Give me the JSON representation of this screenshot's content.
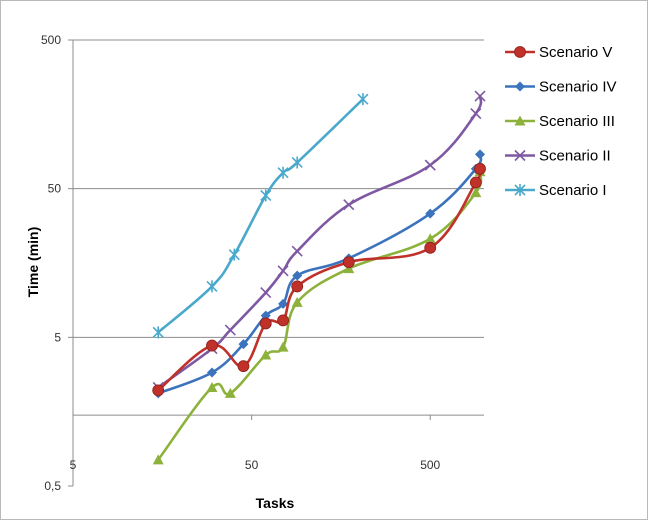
{
  "chart_data": {
    "type": "line",
    "title": "",
    "xlabel": "Tasks",
    "ylabel": "Time (min)",
    "x_scale": "log",
    "y_scale": "log",
    "xlim": [
      5,
      1000
    ],
    "ylim": [
      0.5,
      500
    ],
    "x_ticks": [
      "5",
      "50",
      "500"
    ],
    "y_ticks": [
      "0,5",
      "5",
      "50",
      "500"
    ],
    "grid": "horizontal",
    "legend_position": "right",
    "series": [
      {
        "name": "Scenario V",
        "color": "#c0312a",
        "marker": "circle",
        "points": [
          [
            15,
            2.2
          ],
          [
            30,
            4.4
          ],
          [
            45,
            3.2
          ],
          [
            60,
            6.2
          ],
          [
            75,
            6.5
          ],
          [
            90,
            11
          ],
          [
            175,
            16
          ],
          [
            500,
            20
          ],
          [
            900,
            55
          ],
          [
            950,
            68
          ]
        ]
      },
      {
        "name": "Scenario IV",
        "color": "#3c73bd",
        "marker": "diamond",
        "points": [
          [
            15,
            2.1
          ],
          [
            30,
            2.9
          ],
          [
            45,
            4.5
          ],
          [
            60,
            7
          ],
          [
            75,
            8.4
          ],
          [
            90,
            13
          ],
          [
            175,
            17
          ],
          [
            500,
            34
          ],
          [
            900,
            68
          ],
          [
            950,
            85
          ]
        ]
      },
      {
        "name": "Scenario III",
        "color": "#8db23c",
        "marker": "triangle",
        "points": [
          [
            15,
            0.75
          ],
          [
            30,
            2.3
          ],
          [
            38,
            2.1
          ],
          [
            60,
            3.8
          ],
          [
            75,
            4.3
          ],
          [
            90,
            8.6
          ],
          [
            175,
            14.5
          ],
          [
            500,
            23
          ],
          [
            900,
            47
          ],
          [
            950,
            65
          ]
        ]
      },
      {
        "name": "Scenario II",
        "color": "#7e58a3",
        "marker": "x",
        "points": [
          [
            15,
            2.3
          ],
          [
            30,
            4.2
          ],
          [
            38,
            5.6
          ],
          [
            60,
            10
          ],
          [
            75,
            14
          ],
          [
            90,
            19
          ],
          [
            175,
            39
          ],
          [
            500,
            72
          ],
          [
            900,
            160
          ],
          [
            950,
            210
          ]
        ]
      },
      {
        "name": "Scenario I",
        "color": "#4aa9cb",
        "marker": "asterisk",
        "points": [
          [
            15,
            5.4
          ],
          [
            30,
            11
          ],
          [
            40,
            18
          ],
          [
            60,
            45
          ],
          [
            75,
            64
          ],
          [
            90,
            75
          ],
          [
            210,
            200
          ]
        ]
      }
    ]
  }
}
